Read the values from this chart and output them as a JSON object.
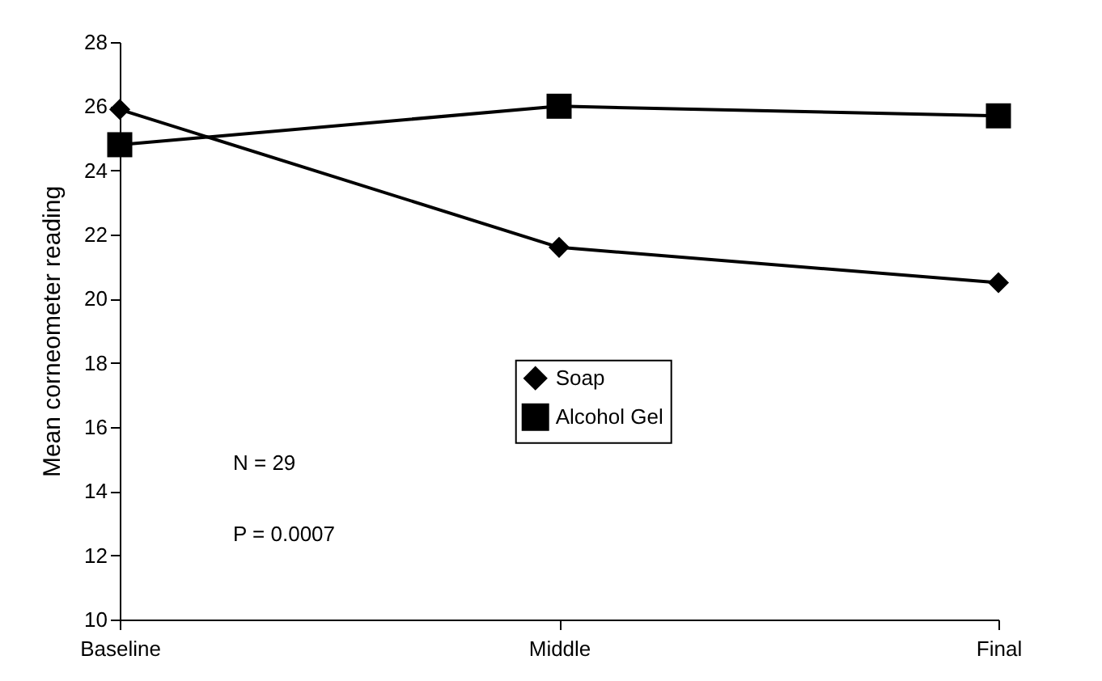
{
  "chart_data": {
    "type": "line",
    "ylabel": "Mean corneometer reading",
    "categories": [
      "Baseline",
      "Middle",
      "Final"
    ],
    "series": [
      {
        "name": "Soap",
        "color": "#000000",
        "marker": "diamond",
        "values": [
          25.9,
          21.6,
          20.5
        ]
      },
      {
        "name": "Alcohol Gel",
        "color": "#000000",
        "marker": "square",
        "values": [
          24.8,
          26.0,
          25.7
        ]
      }
    ],
    "ylim": [
      10,
      28
    ],
    "yticks": [
      10,
      12,
      14,
      16,
      18,
      20,
      22,
      24,
      26,
      28
    ],
    "grid": false,
    "legend": "bottom",
    "annotations": [
      "N = 29",
      "P = 0.0007"
    ]
  }
}
